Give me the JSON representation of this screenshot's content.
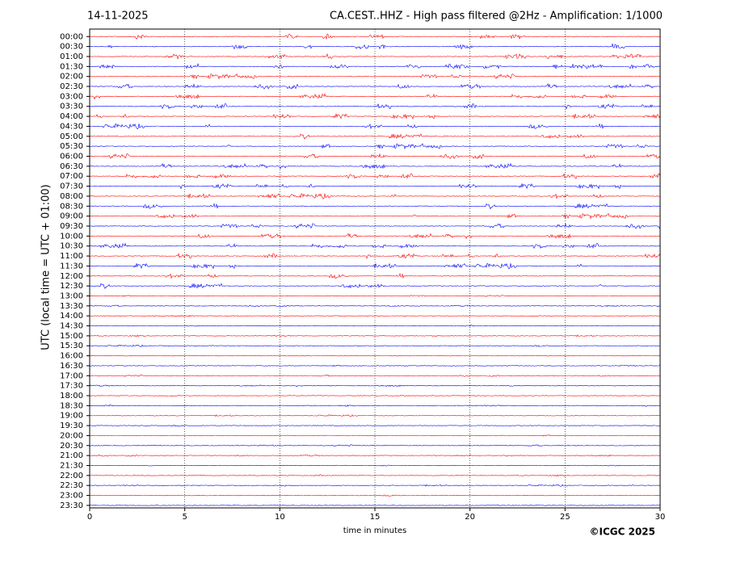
{
  "chart_data": {
    "type": "helicorder",
    "title_left": "14-11-2025",
    "title": "CA.CEST..HHZ - High pass filtered @2Hz - Amplification: 1/1000",
    "y_label": "UTC (local time = UTC + 01:00)",
    "x_label": "time in minutes",
    "copyright": "©ICGC 2025",
    "categories": [
      "00:00",
      "00:30",
      "01:00",
      "01:30",
      "02:00",
      "02:30",
      "03:00",
      "03:30",
      "04:00",
      "04:30",
      "05:00",
      "05:30",
      "06:00",
      "06:30",
      "07:00",
      "07:30",
      "08:00",
      "08:30",
      "09:00",
      "09:30",
      "10:00",
      "10:30",
      "11:00",
      "11:30",
      "12:00",
      "12:30",
      "13:00",
      "13:30",
      "14:00",
      "14:30",
      "15:00",
      "15:30",
      "16:00",
      "16:30",
      "17:00",
      "17:30",
      "18:00",
      "18:30",
      "19:00",
      "19:30",
      "20:00",
      "20:30",
      "21:00",
      "21:30",
      "22:00",
      "22:30",
      "23:00",
      "23:30"
    ],
    "colors": [
      "#ff0000",
      "#0000ff"
    ],
    "xlim": [
      0,
      30
    ],
    "xticks": [
      0,
      5,
      10,
      15,
      20,
      25,
      30
    ],
    "grid": true
  }
}
